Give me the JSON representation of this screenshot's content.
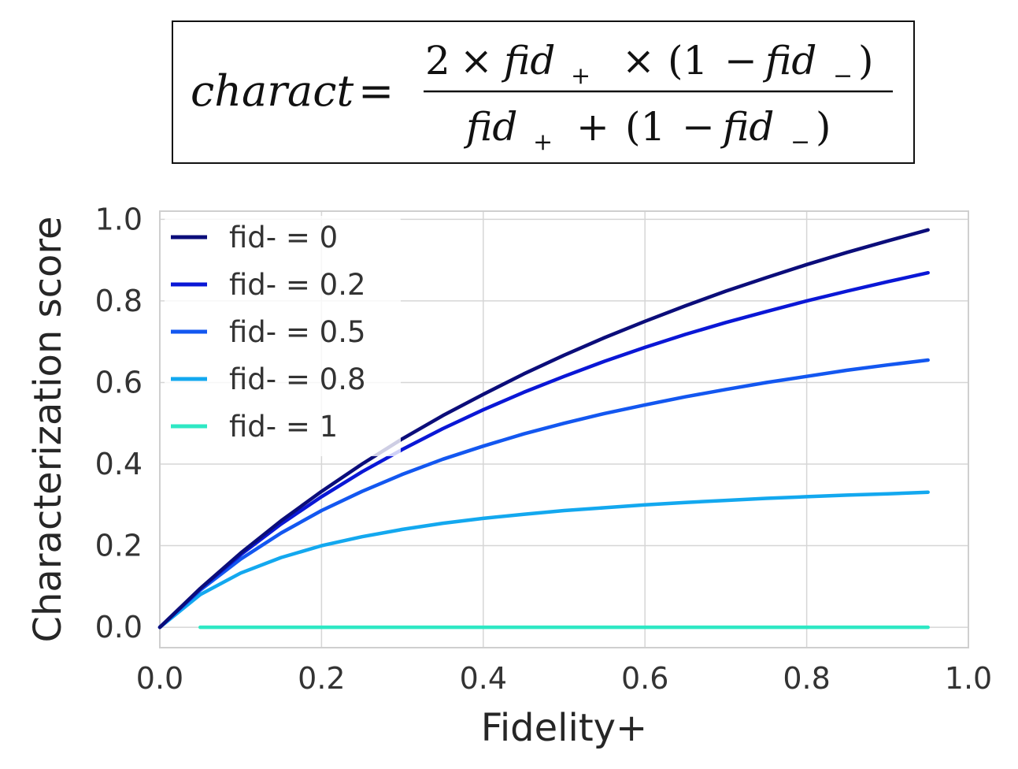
{
  "formula": {
    "lhs": "charact",
    "equals": "=",
    "numerator": {
      "two": "2",
      "times1": "×",
      "fid_plus": "fid",
      "plus_sub": "+",
      "times2": "×",
      "open": "(1",
      "minus": "−",
      "fid_minus": "fid",
      "minus_sub": "−",
      "close": ")"
    },
    "denominator": {
      "fid_plus": "fid",
      "plus_sub": "+",
      "plus": "+",
      "open": "(1",
      "minus": "−",
      "fid_minus": "fid",
      "minus_sub": "−",
      "close": ")"
    }
  },
  "chart_data": {
    "type": "line",
    "xlabel": "Fidelity+",
    "ylabel": "Characterization score",
    "xlim": [
      0.0,
      1.0
    ],
    "ylim": [
      -0.05,
      1.02
    ],
    "xticks": [
      "0.0",
      "0.2",
      "0.4",
      "0.6",
      "0.8",
      "1.0"
    ],
    "yticks": [
      "0.0",
      "0.2",
      "0.4",
      "0.6",
      "0.8",
      "1.0"
    ],
    "grid": true,
    "legend_position": "top-left",
    "x": [
      0.0,
      0.05,
      0.1,
      0.15,
      0.2,
      0.25,
      0.3,
      0.35,
      0.4,
      0.45,
      0.5,
      0.55,
      0.6,
      0.65,
      0.7,
      0.75,
      0.8,
      0.85,
      0.9,
      0.95
    ],
    "series": [
      {
        "name": "fid- = 0",
        "color": "#0b0d7a",
        "values": [
          0.0,
          0.095,
          0.182,
          0.261,
          0.333,
          0.4,
          0.462,
          0.519,
          0.571,
          0.621,
          0.667,
          0.71,
          0.75,
          0.788,
          0.824,
          0.857,
          0.889,
          0.919,
          0.947,
          0.974
        ]
      },
      {
        "name": "fid- = 0.2",
        "color": "#0a17d6",
        "values": [
          0.0,
          0.094,
          0.178,
          0.253,
          0.32,
          0.381,
          0.436,
          0.487,
          0.533,
          0.576,
          0.615,
          0.652,
          0.686,
          0.718,
          0.747,
          0.774,
          0.8,
          0.824,
          0.847,
          0.869
        ]
      },
      {
        "name": "fid- = 0.5",
        "color": "#1357f0",
        "values": [
          0.0,
          0.091,
          0.167,
          0.231,
          0.286,
          0.333,
          0.375,
          0.412,
          0.444,
          0.474,
          0.5,
          0.524,
          0.545,
          0.565,
          0.583,
          0.6,
          0.615,
          0.63,
          0.643,
          0.655
        ]
      },
      {
        "name": "fid- = 0.8",
        "color": "#13a8ef",
        "values": [
          0.0,
          0.08,
          0.133,
          0.171,
          0.2,
          0.222,
          0.24,
          0.255,
          0.267,
          0.277,
          0.286,
          0.293,
          0.3,
          0.306,
          0.311,
          0.316,
          0.32,
          0.324,
          0.327,
          0.331
        ]
      },
      {
        "name": "fid- = 1",
        "color": "#2ee8c4",
        "values": [
          null,
          0.0,
          0.0,
          0.0,
          0.0,
          0.0,
          0.0,
          0.0,
          0.0,
          0.0,
          0.0,
          0.0,
          0.0,
          0.0,
          0.0,
          0.0,
          0.0,
          0.0,
          0.0,
          0.0
        ]
      }
    ]
  }
}
